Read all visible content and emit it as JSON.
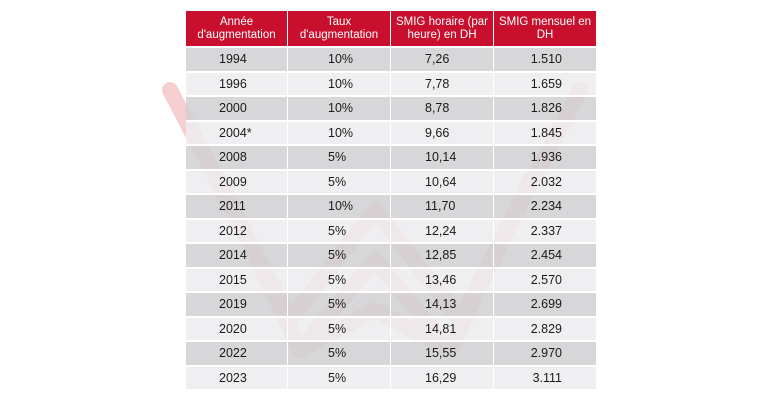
{
  "table": {
    "headers": {
      "year": "Année d'augmentation",
      "rate": "Taux d'augmentation",
      "hourly": "SMIG horaire (par heure) en DH",
      "monthly": "SMIG mensuel en DH"
    },
    "rows": [
      {
        "year": "1994",
        "rate": "10%",
        "hourly": "7,26",
        "monthly": "1.510"
      },
      {
        "year": "1996",
        "rate": "10%",
        "hourly": "7,78",
        "monthly": "1.659"
      },
      {
        "year": "2000",
        "rate": "10%",
        "hourly": "8,78",
        "monthly": "1.826"
      },
      {
        "year": "2004*",
        "rate": "10%",
        "hourly": "9,66",
        "monthly": "1.845"
      },
      {
        "year": "2008",
        "rate": "5%",
        "hourly": "10,14",
        "monthly": "1.936"
      },
      {
        "year": "2009",
        "rate": "5%",
        "hourly": "10,64",
        "monthly": "2.032"
      },
      {
        "year": "2011",
        "rate": "10%",
        "hourly": "11,70",
        "monthly": "2.234"
      },
      {
        "year": "2012",
        "rate": "5%",
        "hourly": "12,24",
        "monthly": "2.337"
      },
      {
        "year": "2014",
        "rate": "5%",
        "hourly": "12,85",
        "monthly": "2.454"
      },
      {
        "year": "2015",
        "rate": "5%",
        "hourly": "13,46",
        "monthly": "2.570"
      },
      {
        "year": "2019",
        "rate": "5%",
        "hourly": "14,13",
        "monthly": "2.699"
      },
      {
        "year": "2020",
        "rate": "5%",
        "hourly": "14,81",
        "monthly": "2.829"
      },
      {
        "year": "2022",
        "rate": "5%",
        "hourly": "15,55",
        "monthly": "2.970"
      },
      {
        "year": "2023",
        "rate": "5%",
        "hourly": "16,29",
        "monthly": "3.111"
      }
    ]
  },
  "colors": {
    "header_bg": "#c8102e",
    "row_dark": "#d0d0d2",
    "row_light": "#ececee",
    "watermark": "#d6262c"
  },
  "watermark": {
    "icon": "open-book-logo-icon"
  }
}
